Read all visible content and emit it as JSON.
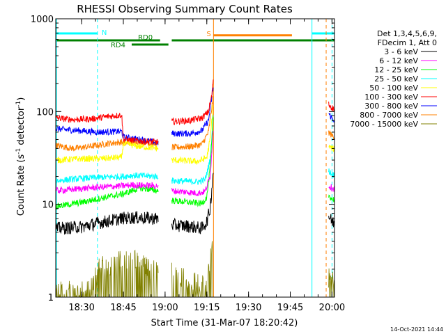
{
  "chart_data": {
    "type": "line",
    "title": "RHESSI Observing Summary Count Rates",
    "xlabel": "Start Time (31-Mar-07 18:20:42)",
    "ylabel_main": "Count Rate (s",
    "ylabel_sup": "-1",
    "ylabel_tail": " detector",
    "ylabel_end": ")",
    "x_range_min": [
      18.345,
      20.015
    ],
    "y_range": [
      1,
      1000
    ],
    "y_scale": "log",
    "x_ticks": [
      {
        "label": "18:30",
        "t": 18.5
      },
      {
        "label": "18:45",
        "t": 18.75
      },
      {
        "label": "19:00",
        "t": 19.0
      },
      {
        "label": "19:15",
        "t": 19.25
      },
      {
        "label": "19:30",
        "t": 19.5
      },
      {
        "label": "19:45",
        "t": 19.75
      },
      {
        "label": "20:00",
        "t": 20.0
      }
    ],
    "y_ticks": [
      {
        "label": "1",
        "v": 1
      },
      {
        "label": "10",
        "v": 10
      },
      {
        "label": "100",
        "v": 100
      },
      {
        "label": "1000",
        "v": 1000
      }
    ],
    "legend_header": [
      "Det 1,3,4,5,6,9,",
      "FDecim 1, Att 0"
    ],
    "legend_placement": "right",
    "date_stamp": "14-Oct-2021 14:44",
    "segments": [
      [
        18.345,
        18.96
      ],
      [
        19.04,
        19.29
      ],
      [
        19.98,
        20.05
      ]
    ],
    "series": [
      {
        "name": "3 - 6 keV",
        "color": "#000000",
        "points": [
          [
            18.35,
            5.5
          ],
          [
            18.5,
            5.7
          ],
          [
            18.6,
            6.3
          ],
          [
            18.75,
            7.1
          ],
          [
            18.83,
            7.2
          ],
          [
            18.96,
            7.0
          ],
          [
            19.04,
            6.0
          ],
          [
            19.15,
            5.8
          ],
          [
            19.22,
            5.5
          ],
          [
            19.25,
            6.5
          ],
          [
            19.27,
            9.0
          ],
          [
            19.29,
            25.0
          ],
          [
            19.98,
            7.5
          ],
          [
            20.0,
            6.5
          ],
          [
            20.05,
            6.0
          ]
        ]
      },
      {
        "name": "6 - 12 keV",
        "color": "#ff00ff",
        "points": [
          [
            18.35,
            14.0
          ],
          [
            18.5,
            14.8
          ],
          [
            18.6,
            15.3
          ],
          [
            18.75,
            15.8
          ],
          [
            18.8,
            16.2
          ],
          [
            18.96,
            15.8
          ],
          [
            19.04,
            14.0
          ],
          [
            19.2,
            13.2
          ],
          [
            19.24,
            13.8
          ],
          [
            19.27,
            20.0
          ],
          [
            19.29,
            70.0
          ],
          [
            19.98,
            16.0
          ],
          [
            20.0,
            15.0
          ],
          [
            20.05,
            14.0
          ]
        ]
      },
      {
        "name": "12 - 25 keV",
        "color": "#00ff00",
        "points": [
          [
            18.35,
            9.5
          ],
          [
            18.5,
            10.5
          ],
          [
            18.6,
            11.5
          ],
          [
            18.75,
            13.0
          ],
          [
            18.8,
            14.0
          ],
          [
            18.85,
            15.0
          ],
          [
            18.96,
            14.0
          ],
          [
            19.04,
            11.0
          ],
          [
            19.15,
            10.5
          ],
          [
            19.22,
            10.2
          ],
          [
            19.25,
            12.0
          ],
          [
            19.27,
            25.0
          ],
          [
            19.29,
            90.0
          ],
          [
            19.98,
            12.5
          ],
          [
            20.0,
            11.5
          ],
          [
            20.05,
            10.5
          ]
        ]
      },
      {
        "name": "25 - 50 keV",
        "color": "#00ffff",
        "points": [
          [
            18.35,
            18.0
          ],
          [
            18.5,
            19.0
          ],
          [
            18.6,
            19.5
          ],
          [
            18.75,
            20.0
          ],
          [
            18.8,
            20.5
          ],
          [
            18.96,
            20.0
          ],
          [
            19.04,
            18.0
          ],
          [
            19.2,
            17.5
          ],
          [
            19.24,
            18.5
          ],
          [
            19.27,
            30.0
          ],
          [
            19.29,
            100.0
          ],
          [
            19.98,
            23.0
          ],
          [
            20.0,
            21.0
          ],
          [
            20.05,
            20.0
          ]
        ]
      },
      {
        "name": "50 - 100 keV",
        "color": "#ffff00",
        "points": [
          [
            18.35,
            30.0
          ],
          [
            18.5,
            31.0
          ],
          [
            18.6,
            31.0
          ],
          [
            18.74,
            32.0
          ],
          [
            18.75,
            45.0
          ],
          [
            18.85,
            42.0
          ],
          [
            18.96,
            40.0
          ],
          [
            19.04,
            30.0
          ],
          [
            19.2,
            29.0
          ],
          [
            19.25,
            32.0
          ],
          [
            19.27,
            50.0
          ],
          [
            19.29,
            130.0
          ],
          [
            19.98,
            42.0
          ],
          [
            20.0,
            40.0
          ],
          [
            20.05,
            38.0
          ]
        ]
      },
      {
        "name": "100 - 300 keV",
        "color": "#ff0000",
        "points": [
          [
            18.35,
            85.0
          ],
          [
            18.45,
            82.0
          ],
          [
            18.55,
            83.0
          ],
          [
            18.65,
            88.0
          ],
          [
            18.74,
            92.0
          ],
          [
            18.75,
            50.0
          ],
          [
            18.85,
            48.0
          ],
          [
            18.96,
            47.0
          ],
          [
            19.04,
            78.0
          ],
          [
            19.15,
            80.0
          ],
          [
            19.22,
            85.0
          ],
          [
            19.26,
            100.0
          ],
          [
            19.28,
            150.0
          ],
          [
            19.29,
            240.0
          ],
          [
            19.98,
            120.0
          ],
          [
            20.0,
            110.0
          ],
          [
            20.05,
            95.0
          ]
        ]
      },
      {
        "name": "300 - 800 keV",
        "color": "#0000ff",
        "points": [
          [
            18.35,
            65.0
          ],
          [
            18.5,
            62.0
          ],
          [
            18.6,
            60.0
          ],
          [
            18.74,
            61.0
          ],
          [
            18.75,
            53.0
          ],
          [
            18.85,
            50.0
          ],
          [
            18.96,
            46.0
          ],
          [
            19.04,
            58.0
          ],
          [
            19.15,
            58.0
          ],
          [
            19.22,
            62.0
          ],
          [
            19.26,
            80.0
          ],
          [
            19.29,
            190.0
          ],
          [
            19.98,
            95.0
          ],
          [
            20.0,
            85.0
          ],
          [
            20.05,
            72.0
          ]
        ]
      },
      {
        "name": "800 - 7000 keV",
        "color": "#ff8000",
        "points": [
          [
            18.35,
            43.0
          ],
          [
            18.45,
            40.0
          ],
          [
            18.55,
            42.0
          ],
          [
            18.65,
            45.0
          ],
          [
            18.74,
            47.0
          ],
          [
            18.75,
            45.0
          ],
          [
            18.85,
            48.0
          ],
          [
            18.96,
            44.0
          ],
          [
            19.04,
            41.0
          ],
          [
            19.15,
            42.0
          ],
          [
            19.22,
            44.0
          ],
          [
            19.26,
            60.0
          ],
          [
            19.29,
            150.0
          ],
          [
            19.98,
            60.0
          ],
          [
            20.0,
            55.0
          ],
          [
            20.05,
            50.0
          ]
        ]
      },
      {
        "name": "7000 - 15000 keV",
        "color": "#808000",
        "points": [
          [
            18.35,
            1.0
          ],
          [
            18.55,
            1.0
          ],
          [
            18.6,
            1.8
          ],
          [
            18.75,
            2.2
          ],
          [
            18.8,
            2.6
          ],
          [
            18.85,
            2.0
          ],
          [
            18.96,
            1.6
          ],
          [
            19.04,
            1.8
          ],
          [
            19.15,
            1.3
          ],
          [
            19.22,
            1.2
          ],
          [
            19.25,
            1.0
          ],
          [
            19.27,
            2.5
          ],
          [
            19.29,
            4.0
          ],
          [
            19.98,
            1.5
          ],
          [
            20.0,
            1.4
          ],
          [
            20.05,
            1.2
          ]
        ]
      }
    ],
    "bars": [
      {
        "label": "N",
        "color": "#00ffff",
        "t0": 18.345,
        "t1": 18.595,
        "y": 1.0
      },
      {
        "label": "",
        "color": "#00ffff",
        "t0": 19.88,
        "t1": 20.015,
        "y": 1.0
      },
      {
        "label": "S",
        "color": "#ff8000",
        "t0": 19.29,
        "t1": 19.76,
        "y": 0.72
      },
      {
        "label": "RD0",
        "color": "#008000",
        "t0": 18.345,
        "t1": 18.97,
        "y": 0.0
      },
      {
        "label": "",
        "color": "#008000",
        "t0": 19.04,
        "t1": 20.015,
        "y": 0.0
      },
      {
        "label": "RD4",
        "color": "#008000",
        "t0": 18.8,
        "t1": 19.02,
        "y": -0.6
      }
    ],
    "vlines": [
      {
        "t": 18.35,
        "color": "#00ffff",
        "dashed": false
      },
      {
        "t": 18.595,
        "color": "#00ffff",
        "dashed": true
      },
      {
        "t": 19.29,
        "color": "#ff8000",
        "dashed": false
      },
      {
        "t": 19.88,
        "color": "#00ffff",
        "dashed": false
      },
      {
        "t": 19.965,
        "color": "#ff8000",
        "dashed": true
      },
      {
        "t": 20.0,
        "color": "#00ffff",
        "dashed": true
      }
    ]
  }
}
